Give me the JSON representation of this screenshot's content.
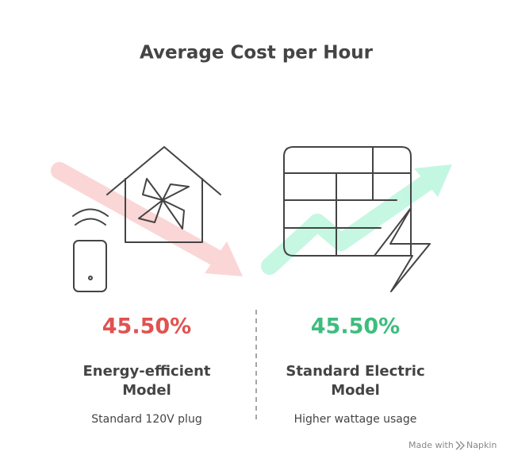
{
  "title": "Average Cost per Hour",
  "columns": [
    {
      "value": "45.50%",
      "label_lines": [
        "Energy-efficient",
        "Model"
      ],
      "description": "Standard 120V plug",
      "color": "#e0524f"
    },
    {
      "value": "45.50%",
      "label_lines": [
        "Standard Electric",
        "Model"
      ],
      "description": "Higher wattage usage",
      "color": "#3dbd7d"
    }
  ],
  "footer": {
    "prefix": "Made with",
    "brand": "Napkin"
  }
}
